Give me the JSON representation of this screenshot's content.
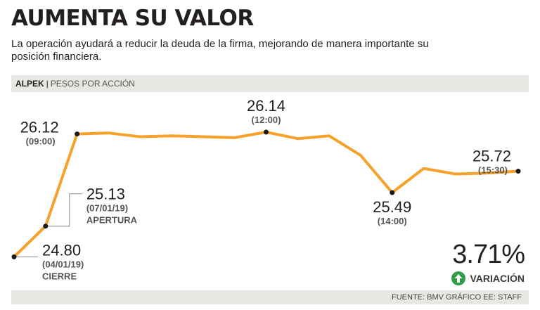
{
  "header": {
    "title": "AUMENTA SU VALOR",
    "subtitle": "La operación ayudará a reducir la deuda de la firma, mejorando de manera importante su posición financiera."
  },
  "chart_header": {
    "ticker": "ALPEK",
    "separator": "|",
    "unit": "PESOS POR ACCIÓN"
  },
  "variation": {
    "value": "3.71%",
    "label": "VARIACIÓN",
    "direction": "up"
  },
  "footer": {
    "source": "FUENTE: BMV GRÁFICO EE: STAFF"
  },
  "colors": {
    "line": "#f7a12b",
    "marker": "#1a1a1a",
    "leader": "#888888",
    "up": "#2f9e46"
  },
  "chart_data": {
    "type": "line",
    "ylim": [
      24.72,
      26.23
    ],
    "x_positions": [
      0,
      1,
      2,
      3,
      4,
      5,
      6,
      7,
      8,
      9,
      10,
      11,
      12,
      13,
      14,
      15,
      16
    ],
    "values": [
      24.8,
      25.13,
      26.12,
      26.13,
      26.09,
      26.1,
      26.09,
      26.08,
      26.14,
      26.07,
      26.1,
      25.89,
      25.49,
      25.75,
      25.69,
      25.7,
      25.72
    ],
    "annotations": [
      {
        "index": 0,
        "value": "24.80",
        "time": "(04/01/19)",
        "note": "CIERRE"
      },
      {
        "index": 1,
        "value": "25.13",
        "time": "(07/01/19)",
        "note": "APERTURA"
      },
      {
        "index": 2,
        "value": "26.12",
        "time": "(09:00)",
        "note": ""
      },
      {
        "index": 8,
        "value": "26.14",
        "time": "(12:00)",
        "note": ""
      },
      {
        "index": 12,
        "value": "25.49",
        "time": "(14:00)",
        "note": ""
      },
      {
        "index": 16,
        "value": "25.72",
        "time": "(15:30)",
        "note": ""
      }
    ]
  }
}
